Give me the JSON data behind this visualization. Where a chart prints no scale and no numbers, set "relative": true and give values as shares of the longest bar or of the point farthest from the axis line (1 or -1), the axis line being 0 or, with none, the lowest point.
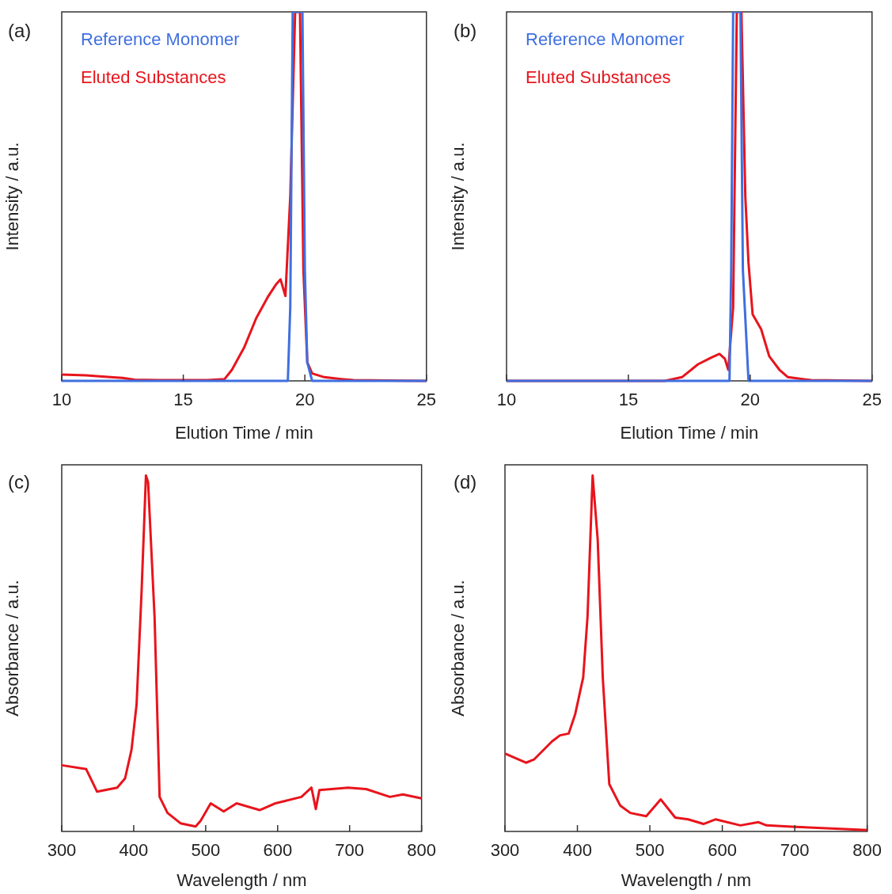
{
  "chart_data": [
    {
      "type": "line",
      "title": "(a)",
      "xlabel": "Elution Time / min",
      "ylabel": "Intensity / a.u.",
      "xlim": [
        10,
        25
      ],
      "xticks": [
        10,
        15,
        20,
        25
      ],
      "relative": true,
      "legend": "top left",
      "marker": "none",
      "series": [
        {
          "name": "Reference Monomer",
          "color": "#3f6fe0",
          "x": [
            10,
            19.3,
            19.4,
            19.5,
            19.9,
            20.0,
            20.1,
            20.3,
            25
          ],
          "values": [
            0,
            0,
            0.2,
            1,
            1,
            0.3,
            0.05,
            0,
            0
          ]
        },
        {
          "name": "Eluted Substances",
          "color": "#e8141c",
          "x": [
            10,
            11,
            12,
            12.5,
            13,
            14,
            16,
            16.7,
            17,
            17.5,
            18,
            18.5,
            18.8,
            19.0,
            19.2,
            19.4,
            19.6,
            19.8,
            19.94,
            20.1,
            20.3,
            20.8,
            21.5,
            22,
            25
          ],
          "values": [
            0.017,
            0.015,
            0.01,
            0.008,
            0.003,
            0.002,
            0.002,
            0.005,
            0.03,
            0.09,
            0.17,
            0.23,
            0.26,
            0.275,
            0.23,
            0.5,
            1,
            1,
            0.3,
            0.05,
            0.02,
            0.01,
            0.005,
            0.002,
            0
          ]
        }
      ]
    },
    {
      "type": "line",
      "title": "(b)",
      "xlabel": "Elution Time / min",
      "ylabel": "Intensity / a.u.",
      "xlim": [
        10,
        25
      ],
      "xticks": [
        10,
        15,
        20,
        25
      ],
      "relative": true,
      "legend": "top left",
      "marker": "none",
      "series": [
        {
          "name": "Reference Monomer",
          "color": "#3f6fe0",
          "x": [
            10,
            19.15,
            19.22,
            19.3,
            19.6,
            19.7,
            19.93,
            25
          ],
          "values": [
            0,
            0,
            0.3,
            1,
            1,
            0.3,
            0,
            0
          ]
        },
        {
          "name": "Eluted Substances",
          "color": "#e8141c",
          "x": [
            10,
            16.5,
            17.2,
            17.86,
            18.4,
            18.74,
            18.96,
            19.1,
            19.3,
            19.45,
            19.64,
            19.8,
            19.93,
            20.1,
            20.45,
            20.78,
            21.2,
            21.55,
            22.5,
            25
          ],
          "values": [
            0,
            0,
            0.01,
            0.045,
            0.063,
            0.073,
            0.06,
            0.03,
            0.2,
            1,
            1,
            0.5,
            0.32,
            0.18,
            0.14,
            0.067,
            0.03,
            0.01,
            0.002,
            0
          ]
        }
      ]
    },
    {
      "type": "line",
      "title": "(c)",
      "xlabel": "Wavelength / nm",
      "ylabel": "Absorbance / a.u.",
      "xlim": [
        300,
        800
      ],
      "xticks": [
        300,
        400,
        500,
        600,
        700,
        800
      ],
      "relative": true,
      "marker": "none",
      "series": [
        {
          "color": "#e8141c",
          "x": [
            300,
            334,
            349,
            377,
            388,
            397,
            404,
            411,
            417,
            420,
            429,
            436,
            447,
            465,
            486,
            493,
            507,
            525,
            543,
            575,
            597,
            633,
            647,
            653,
            658,
            698,
            723,
            756,
            774,
            800
          ],
          "values": [
            0.186,
            0.175,
            0.112,
            0.123,
            0.149,
            0.23,
            0.357,
            0.677,
            1,
            0.981,
            0.602,
            0.097,
            0.052,
            0.023,
            0.014,
            0.03,
            0.079,
            0.056,
            0.079,
            0.06,
            0.079,
            0.097,
            0.123,
            0.063,
            0.116,
            0.123,
            0.119,
            0.097,
            0.104,
            0.093
          ]
        }
      ]
    },
    {
      "type": "line",
      "title": "(d)",
      "xlabel": "Wavelength / nm",
      "ylabel": "Absorbance / a.u.",
      "xlim": [
        300,
        800
      ],
      "xticks": [
        300,
        400,
        500,
        600,
        700,
        800
      ],
      "relative": true,
      "marker": "none",
      "series": [
        {
          "color": "#e8141c",
          "x": [
            300,
            329,
            340,
            365,
            376,
            388,
            397,
            408,
            414,
            421,
            428,
            435,
            444,
            459,
            473,
            495,
            515,
            535,
            553,
            574,
            591,
            625,
            650,
            661,
            701,
            800
          ],
          "values": [
            0.219,
            0.193,
            0.202,
            0.253,
            0.27,
            0.275,
            0.33,
            0.433,
            0.605,
            1,
            0.82,
            0.433,
            0.133,
            0.073,
            0.052,
            0.043,
            0.09,
            0.039,
            0.034,
            0.021,
            0.034,
            0.017,
            0.026,
            0.017,
            0.013,
            0.004
          ]
        }
      ]
    }
  ]
}
